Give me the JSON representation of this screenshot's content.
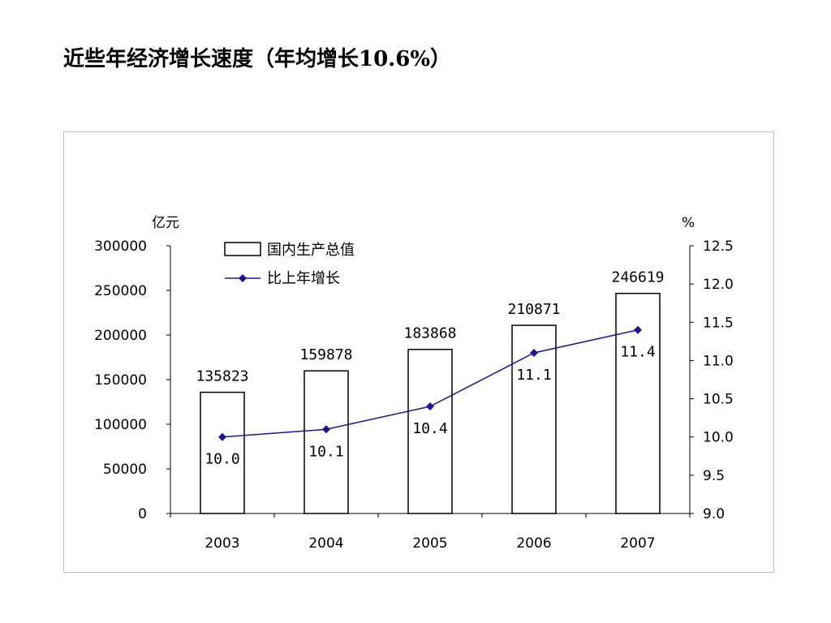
{
  "page": {
    "title": "近些年经济增长速度（年均增长10.6%）"
  },
  "chart_data": {
    "type": "bar+line",
    "categories": [
      "2003",
      "2004",
      "2005",
      "2006",
      "2007"
    ],
    "series": [
      {
        "name": "国内生产总值",
        "type": "bar",
        "axis": "left",
        "values": [
          135823,
          159878,
          183868,
          210871,
          246619
        ],
        "data_labels": [
          "135823",
          "159878",
          "183868",
          "210871",
          "246619"
        ]
      },
      {
        "name": "比上年增长",
        "type": "line",
        "axis": "right",
        "values": [
          10.0,
          10.1,
          10.4,
          11.1,
          11.4
        ],
        "data_labels": [
          "10.0",
          "10.1",
          "10.4",
          "11.1",
          "11.4"
        ]
      }
    ],
    "y_left": {
      "unit": "亿元",
      "min": 0,
      "max": 300000,
      "ticks": [
        0,
        50000,
        100000,
        150000,
        200000,
        250000,
        300000
      ],
      "tick_labels": [
        "0",
        "50000",
        "100000",
        "150000",
        "200000",
        "250000",
        "300000"
      ]
    },
    "y_right": {
      "unit": "%",
      "min": 9.0,
      "max": 12.5,
      "ticks": [
        9.0,
        9.5,
        10.0,
        10.5,
        11.0,
        11.5,
        12.0,
        12.5
      ],
      "tick_labels": [
        "9.0",
        "9.5",
        "10.0",
        "10.5",
        "11.0",
        "11.5",
        "12.0",
        "12.5"
      ]
    },
    "grid": false,
    "legend_position": "top-left",
    "colors": {
      "bar_fill": "#ffffff",
      "bar_stroke": "#000000",
      "line": "#1a1a80",
      "marker": "#1a1a80"
    }
  }
}
